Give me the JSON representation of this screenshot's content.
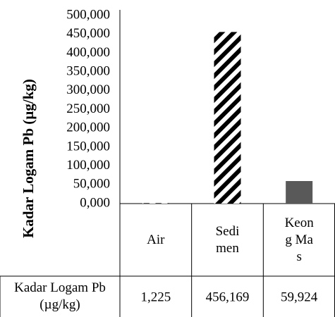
{
  "chart_data": {
    "type": "bar",
    "ylabel": "Kadar Logam Pb (µg/kg)",
    "categories": [
      "Air",
      "Sedimen",
      "Keong Mas"
    ],
    "series": [
      {
        "name": "Kadar Logam Pb (µg/kg)",
        "values": [
          1.225,
          456.169,
          59.924
        ],
        "value_labels": [
          "1,225",
          "456,169",
          "59,924"
        ],
        "colors": [
          "#000000",
          "#000000",
          "#595959"
        ],
        "patterns": [
          "hatch",
          "hatch",
          "solid"
        ]
      }
    ],
    "ylim": [
      0,
      500
    ],
    "yticks": [
      {
        "value": 0,
        "label": "0,000"
      },
      {
        "value": 50,
        "label": "50,000"
      },
      {
        "value": 100,
        "label": "100,000"
      },
      {
        "value": 150,
        "label": "150,000"
      },
      {
        "value": 200,
        "label": "200,000"
      },
      {
        "value": 250,
        "label": "250,000"
      },
      {
        "value": 300,
        "label": "300,000"
      },
      {
        "value": 350,
        "label": "350,000"
      },
      {
        "value": 400,
        "label": "400,000"
      },
      {
        "value": 450,
        "label": "450,000"
      },
      {
        "value": 500,
        "label": "500,000"
      }
    ],
    "grid": false,
    "data_table": true
  }
}
